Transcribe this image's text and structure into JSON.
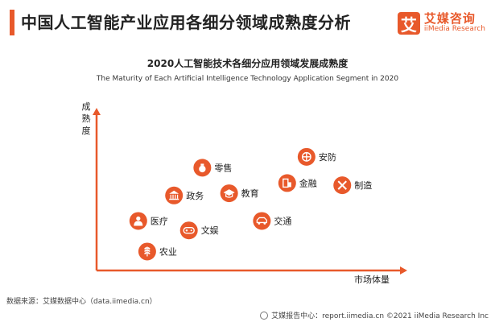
{
  "header": {
    "title": "中国人工智能产业应用各细分领域成熟度分析",
    "logo_mark": "艾",
    "logo_cn": "艾媒咨询",
    "logo_en": "iiMedia Research"
  },
  "chart_data": {
    "type": "scatter",
    "title": "2020人工智能技术各细分应用领域发展成熟度",
    "subtitle": "The Maturity of Each Artificial Intelligence Technology Application Segment in 2020",
    "xlabel": "市场体量",
    "ylabel": "成熟度",
    "xlim": [
      0,
      100
    ],
    "ylim": [
      0,
      100
    ],
    "grid": false,
    "accent_color": "#e8592b",
    "points": [
      {
        "label": "零售",
        "x": 35.5,
        "y": 70.5,
        "icon": "money-bag-icon"
      },
      {
        "label": "安防",
        "x": 70.5,
        "y": 78,
        "icon": "shield-icon"
      },
      {
        "label": "金融",
        "x": 64,
        "y": 60,
        "icon": "finance-building-icon"
      },
      {
        "label": "制造",
        "x": 82.5,
        "y": 58.5,
        "icon": "tools-icon"
      },
      {
        "label": "政务",
        "x": 26,
        "y": 51.5,
        "icon": "government-icon"
      },
      {
        "label": "教育",
        "x": 44.5,
        "y": 53,
        "icon": "graduation-cap-icon"
      },
      {
        "label": "交通",
        "x": 55.5,
        "y": 34,
        "icon": "car-icon"
      },
      {
        "label": "医疗",
        "x": 14,
        "y": 34,
        "icon": "doctor-icon"
      },
      {
        "label": "文娱",
        "x": 31,
        "y": 27.5,
        "icon": "gamepad-icon"
      },
      {
        "label": "农业",
        "x": 17,
        "y": 13,
        "icon": "wheat-icon"
      }
    ]
  },
  "footer": {
    "source": "数据来源：艾媒数据中心（data.iimedia.cn）",
    "copyright": "艾媒报告中心：report.iimedia.cn ©2021 iiMedia Research Inc"
  }
}
